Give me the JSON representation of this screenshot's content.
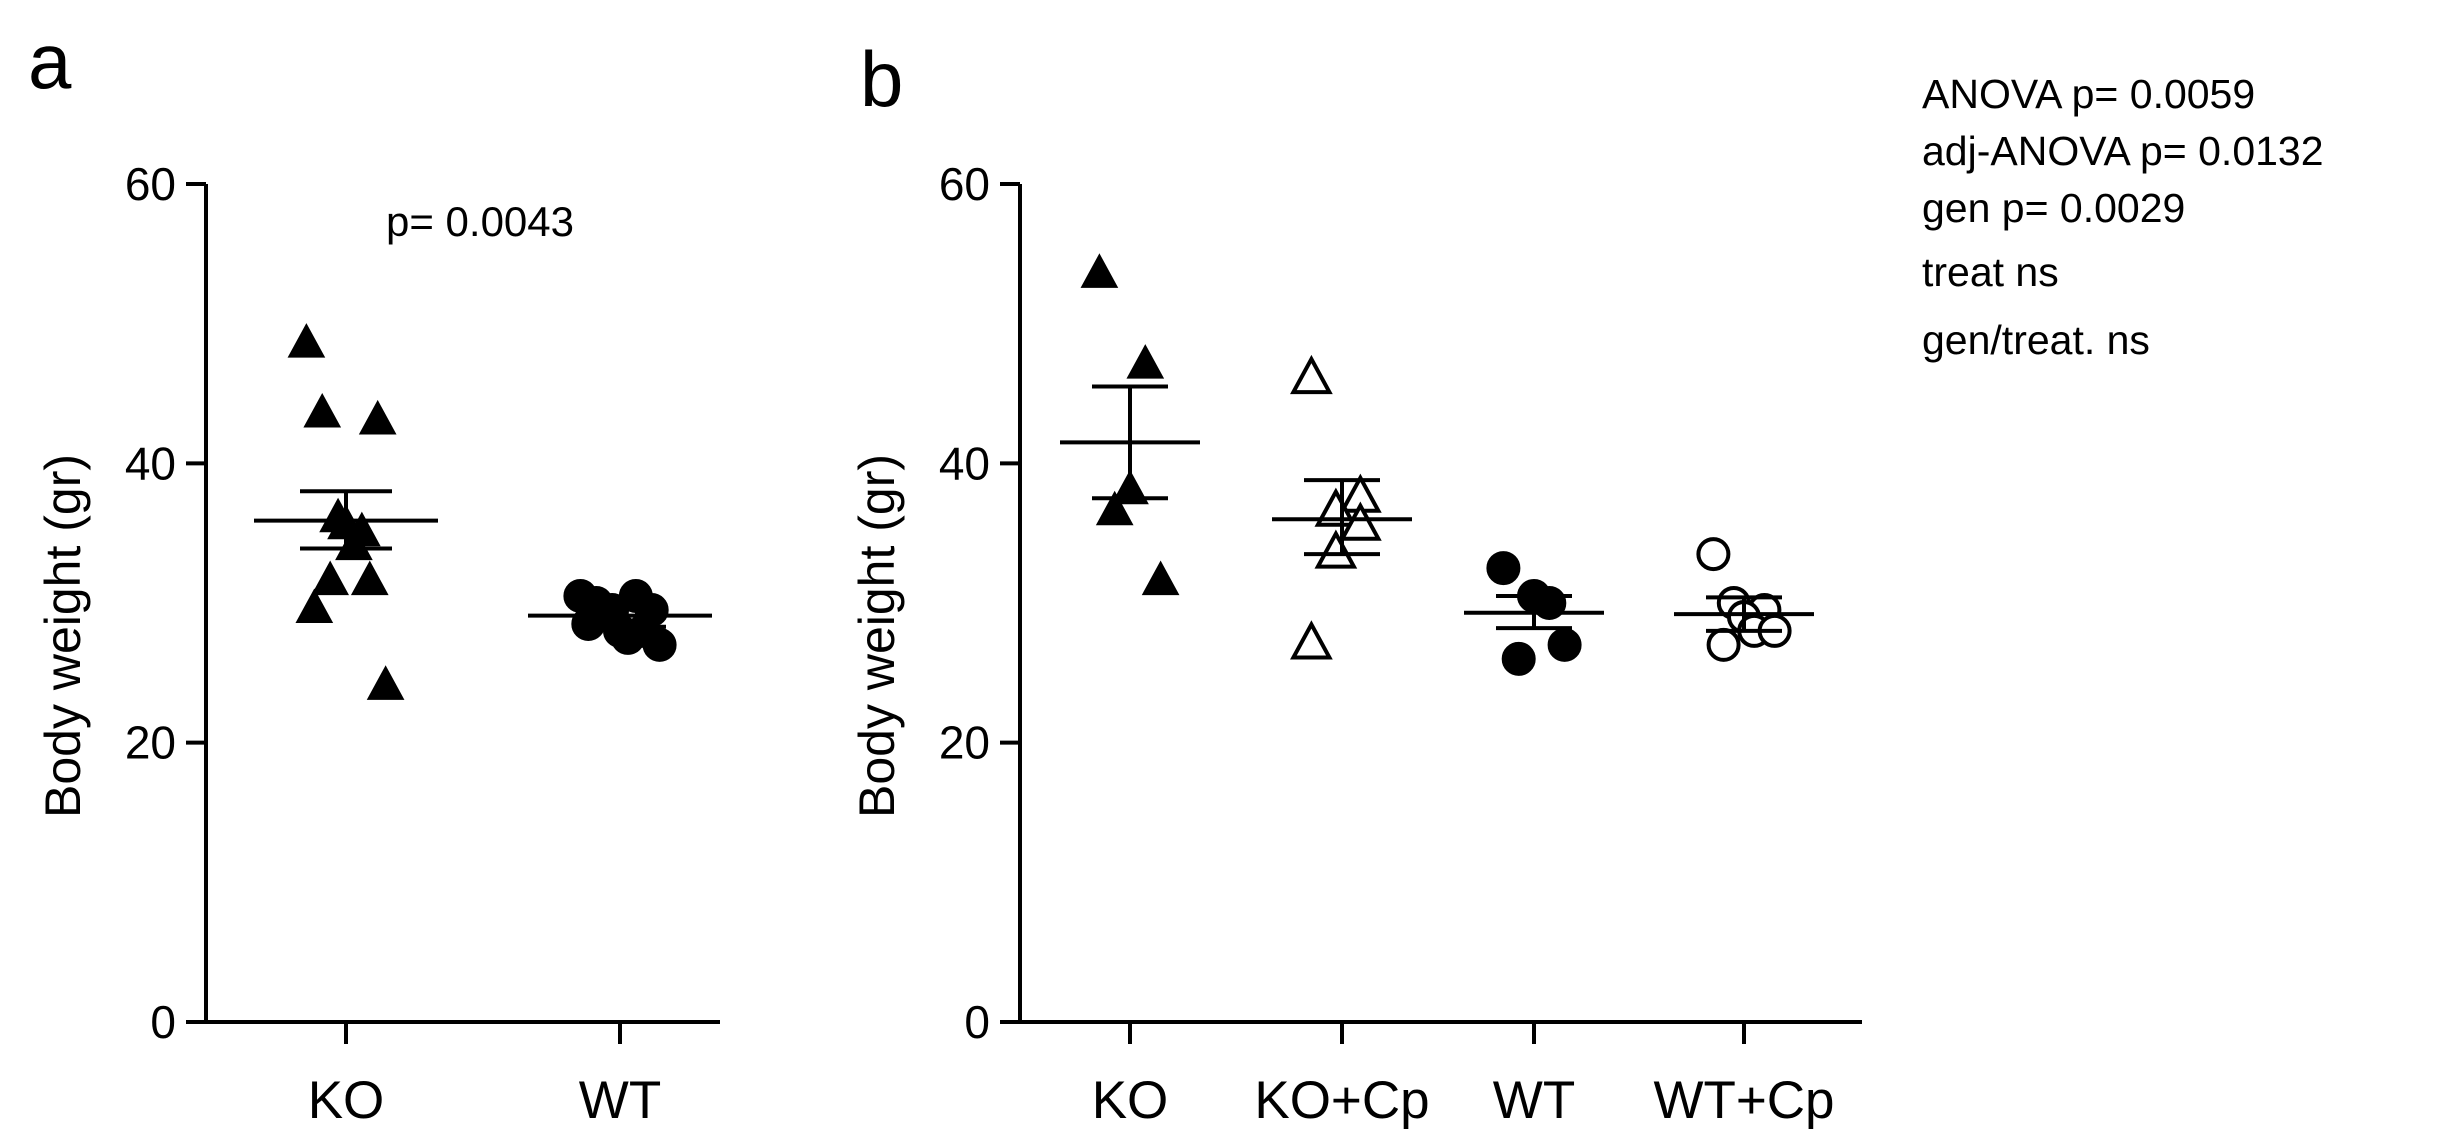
{
  "chart_data": [
    {
      "panel": "a",
      "type": "scatter",
      "ylabel": "Body weight (gr)",
      "xlabel": "",
      "ylim": [
        0,
        60
      ],
      "yticks": [
        0,
        20,
        40,
        60
      ],
      "categories": [
        "KO",
        "WT"
      ],
      "annotation": "p= 0.0043",
      "groups": [
        {
          "name": "KO",
          "marker": "triangle-filled",
          "mean": 35.9,
          "sem_low": 33.9,
          "sem_high": 38.0,
          "points": [
            48.5,
            43.0,
            43.5,
            35.0,
            36.0,
            35.5,
            34.0,
            31.5,
            31.5,
            29.5,
            24.0
          ]
        },
        {
          "name": "WT",
          "marker": "circle-filled",
          "mean": 29.1,
          "sem_low": 28.3,
          "sem_high": 29.8,
          "points": [
            30.5,
            29.5,
            30.0,
            30.5,
            29.5,
            28.0,
            27.5,
            29.5,
            28.0,
            28.5,
            27.0
          ]
        }
      ]
    },
    {
      "panel": "b",
      "type": "scatter",
      "ylabel": "Body weight (gr)",
      "xlabel": "",
      "ylim": [
        0,
        60
      ],
      "yticks": [
        0,
        20,
        40,
        60
      ],
      "categories": [
        "KO",
        "KO+Cp",
        "WT",
        "WT+Cp"
      ],
      "groups": [
        {
          "name": "KO",
          "marker": "triangle-filled",
          "mean": 41.5,
          "sem_low": 37.5,
          "sem_high": 45.5,
          "points": [
            53.5,
            47.0,
            38.0,
            36.5,
            31.5
          ]
        },
        {
          "name": "KO+Cp",
          "marker": "triangle-open",
          "mean": 36.0,
          "sem_low": 33.5,
          "sem_high": 38.8,
          "points": [
            46.0,
            37.5,
            36.5,
            33.5,
            35.5,
            27.0
          ]
        },
        {
          "name": "WT",
          "marker": "circle-filled",
          "mean": 29.3,
          "sem_low": 28.2,
          "sem_high": 30.5,
          "points": [
            32.5,
            30.0,
            30.5,
            26.0,
            27.0
          ]
        },
        {
          "name": "WT+Cp",
          "marker": "circle-open",
          "mean": 29.2,
          "sem_low": 28.0,
          "sem_high": 30.4,
          "points": [
            33.5,
            29.5,
            30.0,
            29.0,
            28.0,
            27.0,
            28.0
          ]
        }
      ]
    }
  ],
  "panel_labels": {
    "a": "a",
    "b": "b"
  },
  "stats_text": [
    "ANOVA p= 0.0059",
    "adj-ANOVA p= 0.0132",
    "gen p= 0.0029",
    "treat  ns",
    "gen/treat. ns"
  ],
  "colors": {
    "ink": "#000000",
    "background": "#ffffff"
  }
}
